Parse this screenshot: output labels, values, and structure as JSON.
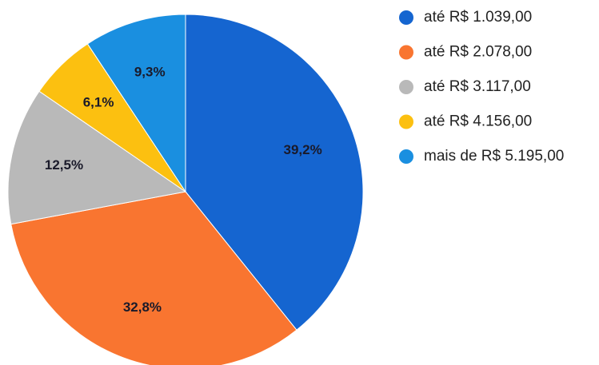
{
  "chart_data": {
    "type": "pie",
    "categories": [
      "até R$ 1.039,00",
      "até R$ 2.078,00",
      "até R$ 3.117,00",
      "até R$ 4.156,00",
      "mais de R$ 5.195,00"
    ],
    "values": [
      39.2,
      32.8,
      12.5,
      6.1,
      9.3
    ],
    "value_labels": [
      "39,2%",
      "32,8%",
      "12,5%",
      "6,1%",
      "9,3%"
    ],
    "colors": [
      "#1565d0",
      "#f97530",
      "#b9b9b9",
      "#fcc010",
      "#1a8fe0"
    ]
  }
}
